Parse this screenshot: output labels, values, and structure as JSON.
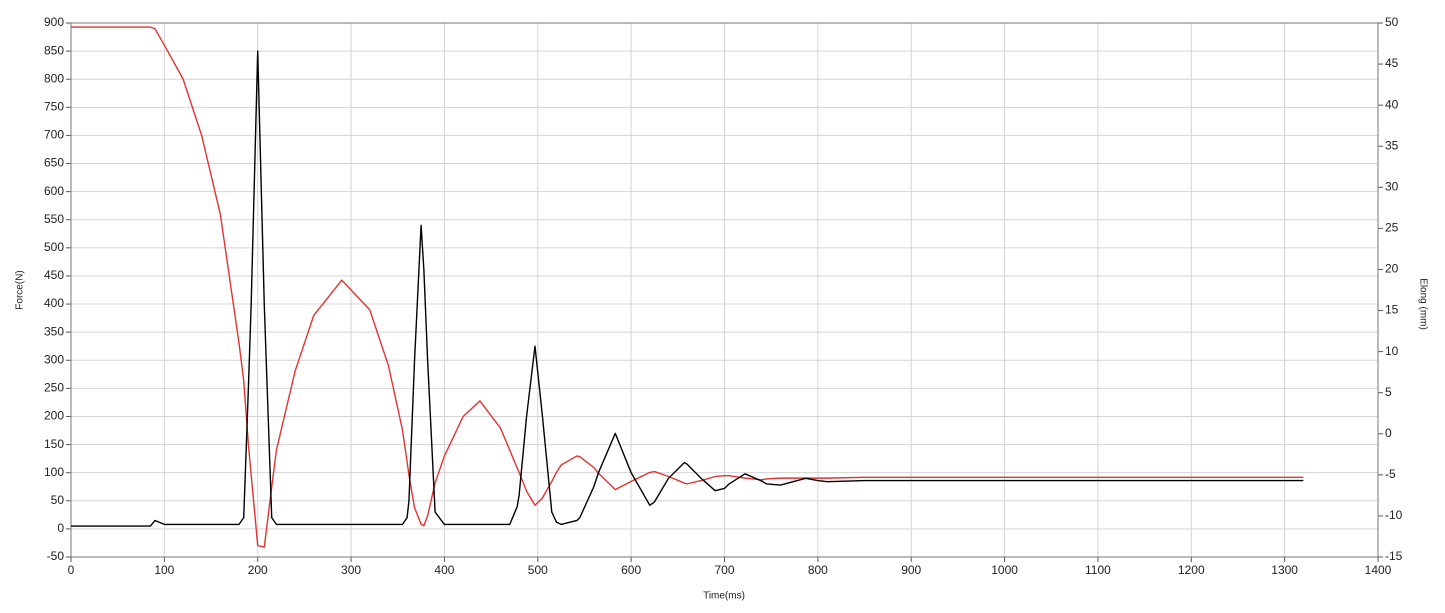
{
  "chart_data": {
    "type": "line",
    "x_label": "Time(ms)",
    "y_label": "Force(N)",
    "y2_label": "Elong (mm)",
    "x": [
      0,
      85,
      90,
      100,
      120,
      140,
      160,
      180,
      185,
      190,
      193,
      200,
      207,
      215,
      220,
      240,
      260,
      290,
      320,
      340,
      355,
      360,
      362,
      368,
      375,
      378,
      382,
      390,
      400,
      420,
      438,
      460,
      470,
      478,
      480,
      488,
      497,
      505,
      515,
      520,
      525,
      542,
      545,
      560,
      565,
      583,
      600,
      620,
      625,
      640,
      657,
      660,
      675,
      690,
      700,
      705,
      722,
      740,
      745,
      760,
      787,
      800,
      810,
      850,
      1320
    ],
    "series": [
      {
        "name": "Force",
        "color": "#000000",
        "axis": "y",
        "values": [
          5,
          5,
          15,
          8,
          8,
          8,
          8,
          8,
          20,
          250,
          400,
          850,
          400,
          20,
          8,
          8,
          8,
          8,
          8,
          8,
          8,
          20,
          50,
          300,
          540,
          460,
          300,
          30,
          8,
          8,
          8,
          8,
          8,
          40,
          60,
          200,
          325,
          200,
          30,
          12,
          8,
          15,
          20,
          75,
          100,
          170,
          100,
          42,
          48,
          90,
          118,
          115,
          90,
          68,
          72,
          80,
          98,
          85,
          80,
          78,
          90,
          86,
          84,
          86,
          86
        ]
      },
      {
        "name": "Elong",
        "color": "#e03434",
        "axis": "y2",
        "values": [
          49.5,
          49.5,
          49.3,
          47.3,
          43.2,
          36.3,
          26.7,
          11,
          6.5,
          -1.3,
          -5,
          -13.6,
          -13.8,
          -6.5,
          -2.0,
          7.6,
          14.4,
          18.7,
          15.1,
          8.3,
          0.5,
          -3.4,
          -5,
          -9,
          -11,
          -11.2,
          -10,
          -6,
          -2.7,
          2.1,
          4.0,
          0.7,
          -2,
          -4.2,
          -4.7,
          -7,
          -8.7,
          -7.8,
          -5.8,
          -4.7,
          -3.8,
          -2.7,
          -2.8,
          -4.1,
          -4.8,
          -6.8,
          -5.8,
          -4.7,
          -4.6,
          -5.2,
          -6.0,
          -6.1,
          -5.7,
          -5.2,
          -5.1,
          -5.1,
          -5.4,
          -5.6,
          -5.5,
          -5.4,
          -5.4,
          -5.4,
          -5.4,
          -5.3,
          -5.3
        ]
      }
    ],
    "xlim": [
      0,
      1400
    ],
    "xticks": [
      0,
      100,
      200,
      300,
      400,
      500,
      600,
      700,
      800,
      900,
      1000,
      1100,
      1200,
      1300,
      1400
    ],
    "ylim": [
      -50,
      900
    ],
    "yticks": [
      -50,
      0,
      50,
      100,
      150,
      200,
      250,
      300,
      350,
      400,
      450,
      500,
      550,
      600,
      650,
      700,
      750,
      800,
      850,
      900
    ],
    "y2lim": [
      -15,
      50
    ],
    "y2ticks": [
      -15,
      -10,
      -5,
      0,
      5,
      10,
      15,
      20,
      25,
      30,
      35,
      40,
      45,
      50
    ],
    "grid": true
  }
}
